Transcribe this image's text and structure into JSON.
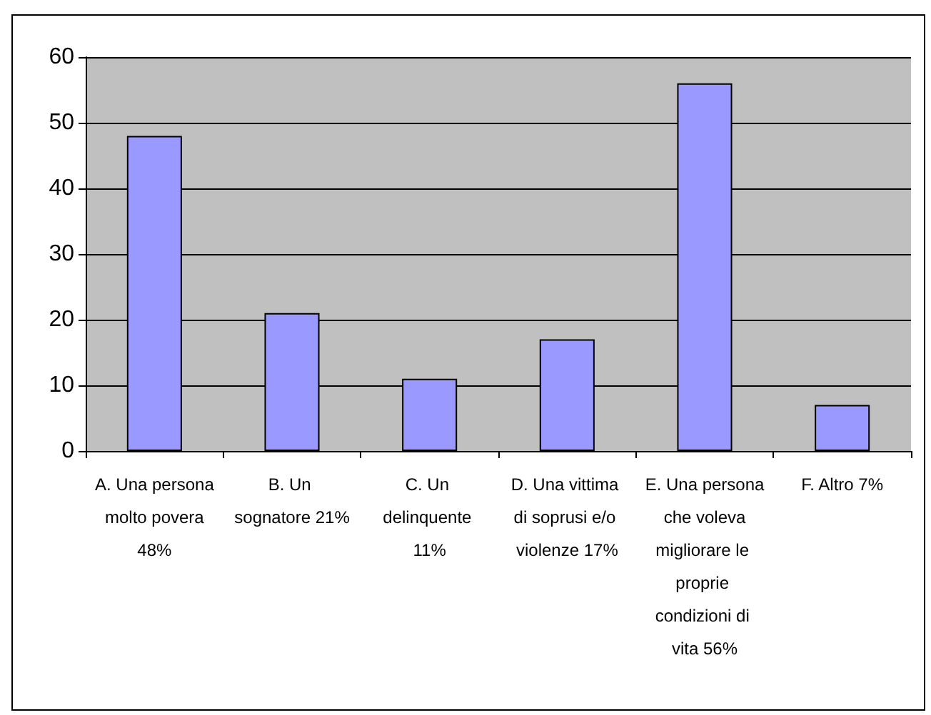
{
  "chart_data": {
    "type": "bar",
    "categories": [
      "A. Una persona molto povera 48%",
      "B. Un sognatore 21%",
      "C. Un delinquente 11%",
      "D. Una vittima di soprusi e/o violenze 17%",
      "E. Una persona che voleva migliorare le proprie condizioni di vita 56%",
      "F. Altro 7%"
    ],
    "values": [
      48,
      21,
      11,
      17,
      56,
      7
    ],
    "color": "#9999ff",
    "ylim": [
      0,
      60
    ],
    "yticks": [
      0,
      10,
      20,
      30,
      40,
      50,
      60
    ],
    "grid": "y"
  }
}
